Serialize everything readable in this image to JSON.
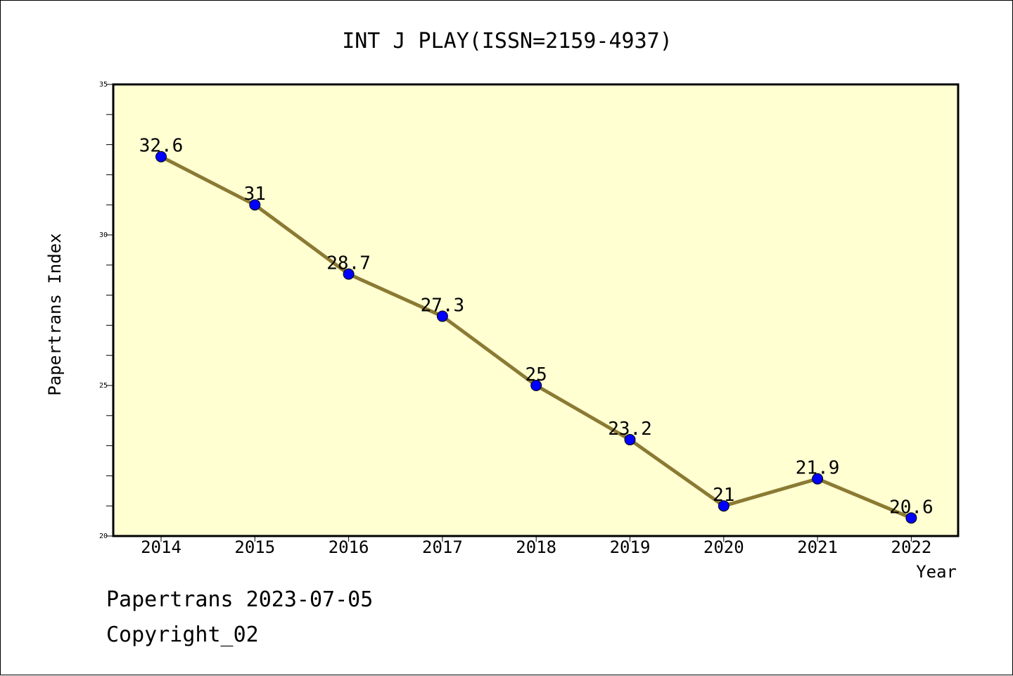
{
  "chart_data": {
    "type": "line",
    "title": "INT J PLAY(ISSN=2159-4937)",
    "xlabel": "Year",
    "ylabel": "Papertrans Index",
    "categories": [
      "2014",
      "2015",
      "2016",
      "2017",
      "2018",
      "2019",
      "2020",
      "2021",
      "2022"
    ],
    "values": [
      32.6,
      31,
      28.7,
      27.3,
      25,
      23.2,
      21,
      21.9,
      20.6
    ],
    "data_labels": [
      "32.6",
      "31",
      "28.7",
      "27.3",
      "25",
      "23.2",
      "21",
      "21.9",
      "20.6"
    ],
    "ylim": [
      20,
      35
    ],
    "yticks": [
      "20",
      "25",
      "30",
      "35"
    ],
    "grid": false,
    "colors": {
      "plot_background": "#ffffd2",
      "line": "#8b7a33",
      "marker": "#0000ff",
      "text": "#000000"
    }
  },
  "footer": {
    "line1": "Papertrans 2023-07-05",
    "line2": "Copyright_02"
  }
}
